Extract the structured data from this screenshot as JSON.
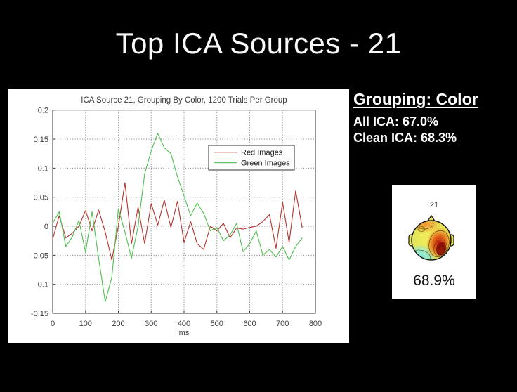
{
  "slide": {
    "title": "Top ICA Sources - 21"
  },
  "info_panel": {
    "heading": "Grouping: Color",
    "all_ica": "All ICA: 67.0%",
    "clean_ica": "Clean ICA: 68.3%"
  },
  "topo_card": {
    "source_number": "21",
    "accuracy": "68.9%"
  },
  "chart_data": {
    "type": "line",
    "title": "ICA Source 21, Grouping By Color, 1200 Trials Per Group",
    "xlabel": "ms",
    "ylabel": "",
    "xlim": [
      0,
      800
    ],
    "ylim": [
      -0.15,
      0.2
    ],
    "grid": true,
    "legend_position": "upper center-right inside",
    "xticks": [
      0,
      100,
      200,
      300,
      400,
      500,
      600,
      700,
      800
    ],
    "xtick_labels": [
      "0",
      "100",
      "200",
      "300",
      "400",
      "500",
      "600",
      "700",
      "800"
    ],
    "yticks": [
      0.2,
      0.15,
      0.1,
      0.05,
      0,
      -0.05,
      -0.1,
      -0.15
    ],
    "ytick_labels": [
      "0.2",
      "0.15",
      "0.1",
      "0.05",
      "0",
      "-0.05",
      "-0.1",
      "-0.15"
    ],
    "x": [
      0,
      20,
      40,
      60,
      80,
      100,
      120,
      140,
      160,
      180,
      200,
      220,
      240,
      260,
      280,
      300,
      320,
      340,
      360,
      380,
      400,
      420,
      440,
      460,
      480,
      500,
      520,
      540,
      560,
      580,
      600,
      620,
      640,
      660,
      680,
      700,
      720,
      740,
      760
    ],
    "series": [
      {
        "name": "Red Images",
        "color": "#b5332e",
        "values": [
          -0.022,
          0.018,
          -0.02,
          -0.012,
          0.0,
          0.027,
          -0.008,
          0.028,
          -0.01,
          -0.058,
          0.0,
          0.075,
          -0.03,
          0.033,
          -0.03,
          0.039,
          0.002,
          0.045,
          -0.002,
          0.043,
          -0.028,
          0.008,
          -0.03,
          -0.04,
          0.0,
          -0.008,
          0.005,
          -0.02,
          -0.003,
          -0.005,
          -0.002,
          0.0,
          0.008,
          0.02,
          -0.038,
          0.041,
          -0.028,
          0.061,
          -0.003
        ]
      },
      {
        "name": "Green Images",
        "color": "#4ec14e",
        "values": [
          0.005,
          0.025,
          -0.035,
          -0.018,
          0.01,
          -0.045,
          0.025,
          -0.055,
          -0.13,
          -0.088,
          0.03,
          -0.01,
          -0.055,
          0.0,
          0.09,
          0.13,
          0.16,
          0.135,
          0.125,
          0.085,
          0.052,
          0.018,
          0.04,
          0.022,
          -0.008,
          -0.002,
          -0.025,
          -0.015,
          0.005,
          -0.044,
          -0.03,
          -0.008,
          -0.05,
          -0.04,
          -0.053,
          -0.035,
          -0.058,
          -0.035,
          -0.02
        ]
      }
    ]
  }
}
